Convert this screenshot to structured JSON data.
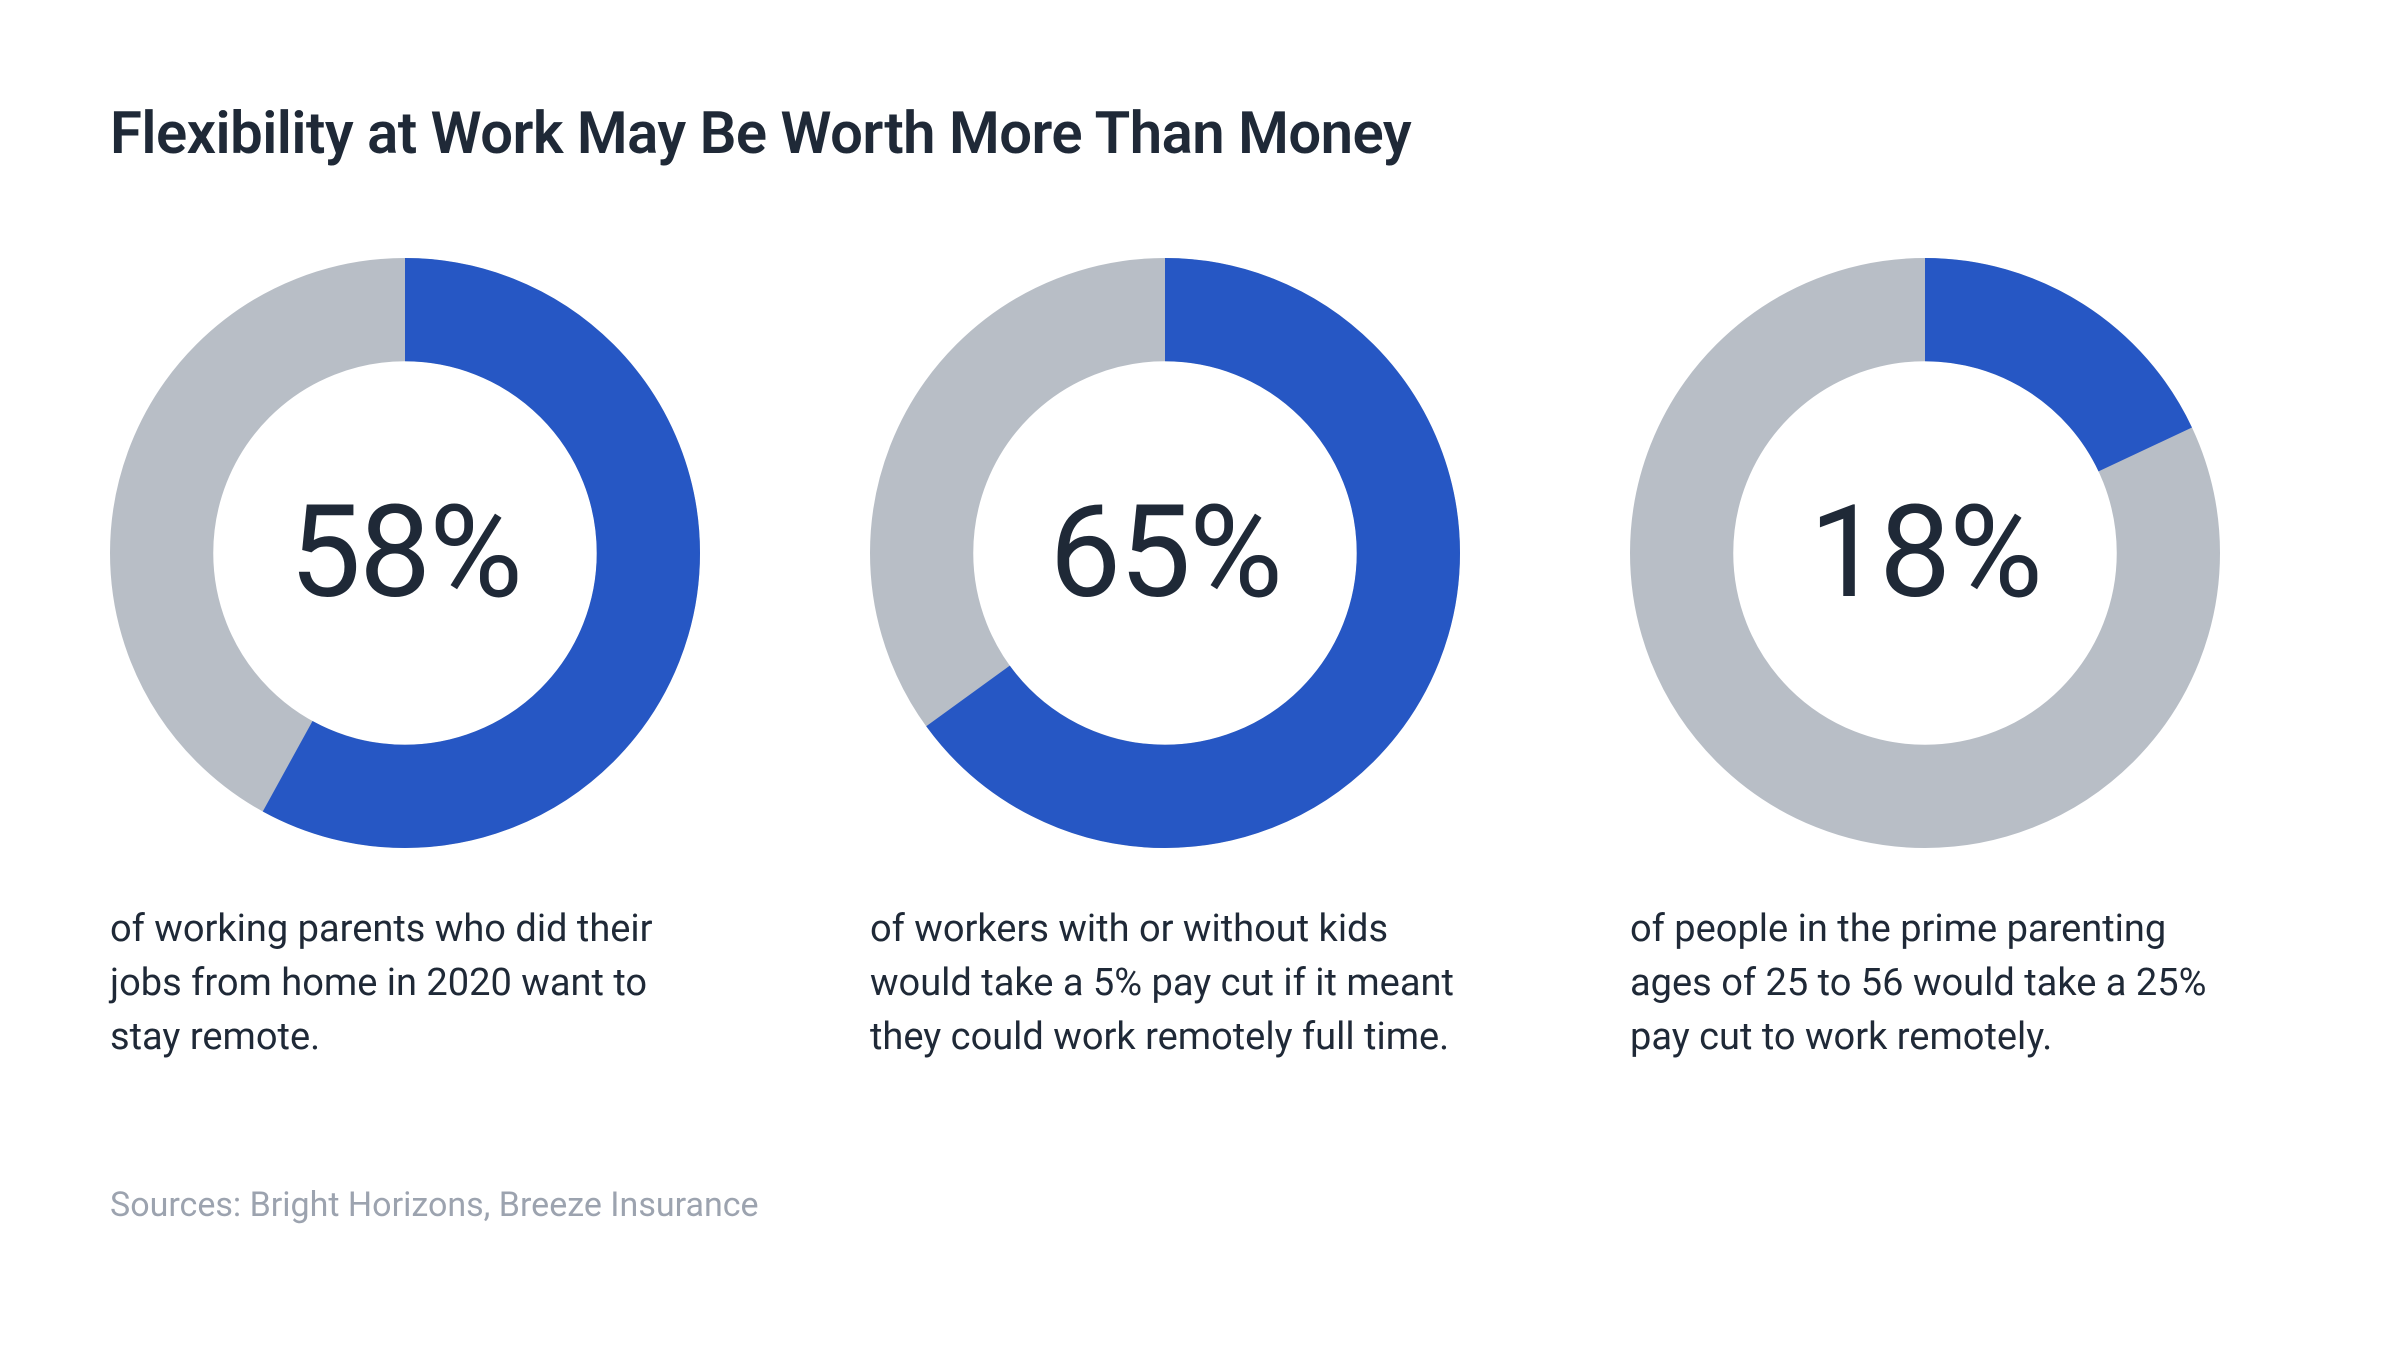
{
  "title": "Flexibility at Work May Be Worth More Than Money",
  "sources": "Sources: Bright Horizons, Breeze Insurance",
  "chart_style": {
    "type": "donut",
    "ring_thickness_pct": 17.5,
    "track_color": "#b8bec6",
    "fill_color": "#2657c4",
    "background_color": "#ffffff",
    "title_color": "#1f2937",
    "text_color": "#1f2937",
    "sources_color": "#9ca3af",
    "title_fontsize": 58,
    "center_fontsize": 128,
    "caption_fontsize": 38
  },
  "charts": [
    {
      "percent": 58,
      "label": "58%",
      "caption": "of working parents who did their jobs from home in 2020 want to stay remote."
    },
    {
      "percent": 65,
      "label": "65%",
      "caption": "of workers with or without kids would take a 5% pay cut if it meant they could work remotely full time."
    },
    {
      "percent": 18,
      "label": "18%",
      "caption": "of people in the prime parenting ages of 25 to 56 would take a 25% pay cut to work remotely."
    }
  ]
}
